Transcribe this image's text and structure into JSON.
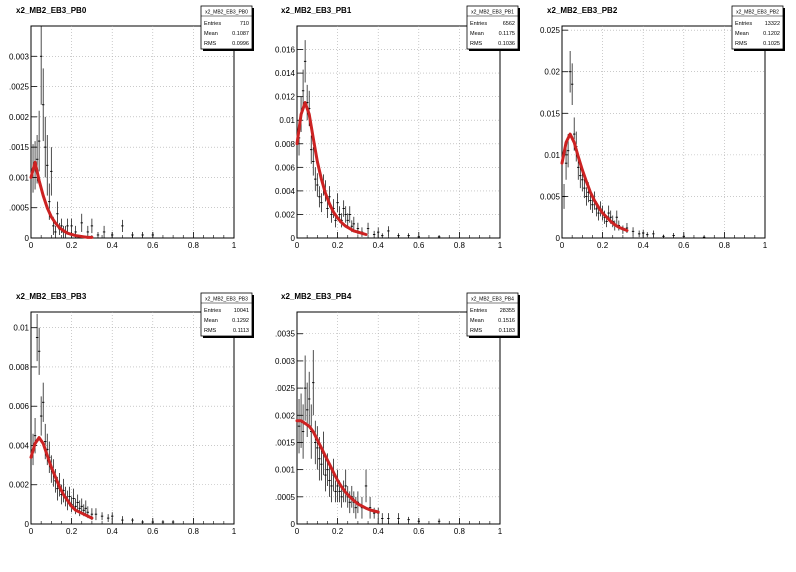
{
  "chart_data": [
    {
      "type": "scatter",
      "title": "x2_MB2_EB3_PB0",
      "stats": {
        "name": "x2_MB2_EB3_PB0",
        "entries_label": "Entries",
        "entries": "710",
        "mean_label": "Mean",
        "mean": "0.1087",
        "rms_label": "RMS",
        "rms": "0.0996"
      },
      "xlim": [
        0,
        1
      ],
      "ylim": [
        0,
        0.0035
      ],
      "xticks": [
        0,
        0.2,
        0.4,
        0.6,
        0.8,
        1
      ],
      "xtick_labels": [
        "0",
        "0.2",
        "0.4",
        "0.6",
        "0.8",
        "1"
      ],
      "yticks": [
        0,
        0.0005,
        0.001,
        0.0015,
        0.002,
        0.0025,
        0.003
      ],
      "ytick_labels": [
        "0",
        ".0005",
        "0.001",
        ".0015",
        "0.002",
        ".0025",
        "0.003"
      ],
      "grid": true,
      "x": [
        0.01,
        0.02,
        0.03,
        0.04,
        0.05,
        0.06,
        0.07,
        0.08,
        0.09,
        0.1,
        0.11,
        0.12,
        0.13,
        0.14,
        0.15,
        0.16,
        0.17,
        0.18,
        0.2,
        0.22,
        0.25,
        0.28,
        0.3,
        0.33,
        0.36,
        0.4,
        0.45,
        0.5,
        0.55,
        0.6
      ],
      "y": [
        0.00115,
        0.0012,
        0.0013,
        0.0016,
        0.003,
        0.0022,
        0.0015,
        0.0012,
        0.0006,
        0.0011,
        0.0002,
        0.0001,
        0.0004,
        0.00015,
        0.0002,
        0.0001,
        0.0001,
        0.0002,
        0.0002,
        0.0001,
        0.00025,
        0.0001,
        0.0002,
        5e-05,
        0.0001,
        5e-05,
        0.0002,
        5e-05,
        5e-05,
        5e-05
      ],
      "yerr": [
        0.0004,
        0.0004,
        0.0004,
        0.0005,
        0.0008,
        0.0006,
        0.0005,
        0.0005,
        0.0003,
        0.0004,
        0.00015,
        0.0001,
        0.0002,
        0.0001,
        0.00012,
        0.0001,
        0.0001,
        0.00012,
        0.00012,
        0.0001,
        0.00015,
        0.0001,
        0.00012,
        5e-05,
        0.0001,
        5e-05,
        0.0001,
        5e-05,
        5e-05,
        5e-05
      ],
      "fit": {
        "x": [
          0.0,
          0.02,
          0.04,
          0.06,
          0.08,
          0.1,
          0.12,
          0.14,
          0.16,
          0.18,
          0.2,
          0.22,
          0.24,
          0.26,
          0.28,
          0.3
        ],
        "y": [
          0.001,
          0.00125,
          0.00095,
          0.0007,
          0.0005,
          0.00035,
          0.00025,
          0.00017,
          0.00012,
          8e-05,
          6e-05,
          4e-05,
          3e-05,
          2e-05,
          1e-05,
          1e-05
        ],
        "color": "#cc2222"
      }
    },
    {
      "type": "scatter",
      "title": "x2_MB2_EB3_PB1",
      "stats": {
        "name": "x2_MB2_EB3_PB1",
        "entries_label": "Entries",
        "entries": "6562",
        "mean_label": "Mean",
        "mean": "0.1175",
        "rms_label": "RMS",
        "rms": "0.1036"
      },
      "xlim": [
        0,
        1
      ],
      "ylim": [
        0,
        0.018
      ],
      "xticks": [
        0,
        0.2,
        0.4,
        0.6,
        0.8,
        1
      ],
      "xtick_labels": [
        "0",
        "0.2",
        "0.4",
        "0.6",
        "0.8",
        "1"
      ],
      "yticks": [
        0,
        0.002,
        0.004,
        0.006,
        0.008,
        0.01,
        0.012,
        0.014,
        0.016
      ],
      "ytick_labels": [
        "0",
        "0.002",
        "0.004",
        "0.006",
        "0.008",
        "0.01",
        "0.012",
        "0.014",
        "0.016"
      ],
      "grid": true,
      "x": [
        0.01,
        0.02,
        0.03,
        0.04,
        0.05,
        0.06,
        0.07,
        0.08,
        0.09,
        0.1,
        0.11,
        0.12,
        0.13,
        0.14,
        0.15,
        0.16,
        0.17,
        0.18,
        0.19,
        0.2,
        0.21,
        0.22,
        0.23,
        0.24,
        0.25,
        0.26,
        0.27,
        0.28,
        0.3,
        0.32,
        0.35,
        0.38,
        0.4,
        0.42,
        0.45,
        0.5,
        0.55,
        0.6,
        0.7
      ],
      "y": [
        0.0085,
        0.0105,
        0.0125,
        0.015,
        0.0115,
        0.011,
        0.0075,
        0.0065,
        0.005,
        0.0045,
        0.0035,
        0.003,
        0.0045,
        0.004,
        0.0025,
        0.0035,
        0.002,
        0.0025,
        0.0015,
        0.003,
        0.002,
        0.0015,
        0.0025,
        0.002,
        0.0015,
        0.002,
        0.001,
        0.0012,
        0.0008,
        0.0005,
        0.0008,
        0.0003,
        0.0005,
        0.0002,
        0.0006,
        0.0002,
        0.0002,
        0.0001,
        0.0001
      ],
      "yerr": [
        0.0015,
        0.0015,
        0.0018,
        0.0018,
        0.0015,
        0.0015,
        0.0012,
        0.0012,
        0.001,
        0.001,
        0.0009,
        0.0008,
        0.0009,
        0.0009,
        0.0008,
        0.0009,
        0.0007,
        0.0008,
        0.0006,
        0.0008,
        0.0007,
        0.0006,
        0.0007,
        0.0007,
        0.0006,
        0.0007,
        0.0005,
        0.0006,
        0.0005,
        0.0004,
        0.0005,
        0.0003,
        0.0004,
        0.0002,
        0.0004,
        0.0002,
        0.0002,
        0.0001,
        0.0001
      ],
      "fit": {
        "x": [
          0.0,
          0.02,
          0.04,
          0.06,
          0.08,
          0.1,
          0.12,
          0.14,
          0.16,
          0.18,
          0.2,
          0.22,
          0.24,
          0.26,
          0.28,
          0.3,
          0.32,
          0.34
        ],
        "y": [
          0.008,
          0.0105,
          0.0115,
          0.0105,
          0.0085,
          0.0065,
          0.005,
          0.0038,
          0.0029,
          0.0022,
          0.0017,
          0.0013,
          0.001,
          0.0008,
          0.0006,
          0.0005,
          0.0004,
          0.0003
        ],
        "color": "#cc2222"
      }
    },
    {
      "type": "scatter",
      "title": "x2_MB2_EB3_PB2",
      "stats": {
        "name": "x2_MB2_EB3_PB2",
        "entries_label": "Entries",
        "entries": "13322",
        "mean_label": "Mean",
        "mean": "0.1202",
        "rms_label": "RMS",
        "rms": "0.1025"
      },
      "xlim": [
        0,
        1
      ],
      "ylim": [
        0,
        0.0255
      ],
      "xticks": [
        0,
        0.2,
        0.4,
        0.6,
        0.8,
        1
      ],
      "xtick_labels": [
        "0",
        "0.2",
        "0.4",
        "0.6",
        "0.8",
        "1"
      ],
      "yticks": [
        0,
        0.005,
        0.01,
        0.015,
        0.02,
        0.025
      ],
      "ytick_labels": [
        "0",
        "0.005",
        "0.01",
        "0.015",
        "0.02",
        "0.025"
      ],
      "grid": true,
      "x": [
        0.01,
        0.02,
        0.03,
        0.04,
        0.05,
        0.06,
        0.07,
        0.08,
        0.09,
        0.1,
        0.11,
        0.12,
        0.13,
        0.14,
        0.15,
        0.16,
        0.17,
        0.18,
        0.19,
        0.2,
        0.21,
        0.22,
        0.23,
        0.24,
        0.25,
        0.26,
        0.27,
        0.28,
        0.3,
        0.32,
        0.35,
        0.38,
        0.4,
        0.42,
        0.45,
        0.5,
        0.55,
        0.6,
        0.7
      ],
      "y": [
        0.005,
        0.009,
        0.0105,
        0.02,
        0.0185,
        0.0125,
        0.011,
        0.0085,
        0.0075,
        0.007,
        0.006,
        0.005,
        0.0055,
        0.0045,
        0.004,
        0.0045,
        0.0035,
        0.003,
        0.0035,
        0.003,
        0.0025,
        0.002,
        0.003,
        0.0025,
        0.002,
        0.0015,
        0.0025,
        0.0015,
        0.001,
        0.0012,
        0.0008,
        0.0005,
        0.0006,
        0.0004,
        0.0005,
        0.0002,
        0.0003,
        0.0002,
        0.0001
      ],
      "yerr": [
        0.0015,
        0.002,
        0.002,
        0.0025,
        0.0025,
        0.002,
        0.0018,
        0.0015,
        0.0015,
        0.0014,
        0.0012,
        0.0011,
        0.0012,
        0.0011,
        0.001,
        0.0011,
        0.0009,
        0.0009,
        0.0009,
        0.0009,
        0.0008,
        0.0007,
        0.0009,
        0.0008,
        0.0007,
        0.0006,
        0.0008,
        0.0006,
        0.0005,
        0.0006,
        0.0005,
        0.0004,
        0.0004,
        0.0003,
        0.0004,
        0.0002,
        0.0003,
        0.0002,
        0.0001
      ],
      "fit": {
        "x": [
          0.0,
          0.02,
          0.04,
          0.06,
          0.08,
          0.1,
          0.12,
          0.14,
          0.16,
          0.18,
          0.2,
          0.22,
          0.24,
          0.26,
          0.28,
          0.3,
          0.32
        ],
        "y": [
          0.009,
          0.0115,
          0.0125,
          0.0115,
          0.0098,
          0.0082,
          0.0068,
          0.0055,
          0.0045,
          0.0037,
          0.003,
          0.0025,
          0.002,
          0.0016,
          0.0013,
          0.0011,
          0.0009
        ],
        "color": "#cc2222"
      }
    },
    {
      "type": "scatter",
      "title": "x2_MB2_EB3_PB3",
      "stats": {
        "name": "x2_MB2_EB3_PB3",
        "entries_label": "Entries",
        "entries": "10041",
        "mean_label": "Mean",
        "mean": "0.1292",
        "rms_label": "RMS",
        "rms": "0.1113"
      },
      "xlim": [
        0,
        1
      ],
      "ylim": [
        0,
        0.0108
      ],
      "xticks": [
        0,
        0.2,
        0.4,
        0.6,
        0.8,
        1
      ],
      "xtick_labels": [
        "0",
        "0.2",
        "0.4",
        "0.6",
        "0.8",
        "1"
      ],
      "yticks": [
        0,
        0.002,
        0.004,
        0.006,
        0.008,
        0.01
      ],
      "ytick_labels": [
        "0",
        "0.002",
        "0.004",
        "0.006",
        "0.008",
        "0.01"
      ],
      "grid": true,
      "x": [
        0.01,
        0.02,
        0.03,
        0.04,
        0.05,
        0.06,
        0.07,
        0.08,
        0.09,
        0.1,
        0.11,
        0.12,
        0.13,
        0.14,
        0.15,
        0.16,
        0.17,
        0.18,
        0.19,
        0.2,
        0.21,
        0.22,
        0.23,
        0.24,
        0.25,
        0.26,
        0.27,
        0.28,
        0.3,
        0.32,
        0.35,
        0.38,
        0.4,
        0.45,
        0.5,
        0.55,
        0.6,
        0.65,
        0.7
      ],
      "y": [
        0.0038,
        0.0045,
        0.0095,
        0.0088,
        0.0055,
        0.0062,
        0.0042,
        0.0038,
        0.0034,
        0.0028,
        0.0026,
        0.0022,
        0.0018,
        0.002,
        0.0015,
        0.0017,
        0.0014,
        0.0012,
        0.0014,
        0.001,
        0.0013,
        0.0009,
        0.0011,
        0.0008,
        0.0009,
        0.0007,
        0.0008,
        0.0006,
        0.0005,
        0.0005,
        0.0004,
        0.0003,
        0.0004,
        0.0002,
        0.0002,
        0.0001,
        0.0001,
        0.0001,
        0.0001
      ],
      "yerr": [
        0.0008,
        0.0009,
        0.0012,
        0.0012,
        0.001,
        0.001,
        0.0009,
        0.0008,
        0.0008,
        0.0007,
        0.0007,
        0.0006,
        0.0006,
        0.0006,
        0.0005,
        0.0006,
        0.0005,
        0.0005,
        0.0005,
        0.0004,
        0.0005,
        0.0004,
        0.0004,
        0.0004,
        0.0004,
        0.0003,
        0.0004,
        0.0003,
        0.0003,
        0.0003,
        0.0002,
        0.0002,
        0.0002,
        0.0002,
        0.0001,
        0.0001,
        0.0001,
        0.0001,
        0.0001
      ],
      "fit": {
        "x": [
          0.0,
          0.02,
          0.04,
          0.06,
          0.08,
          0.1,
          0.12,
          0.14,
          0.16,
          0.18,
          0.2,
          0.22,
          0.24,
          0.26,
          0.28,
          0.3
        ],
        "y": [
          0.0034,
          0.0041,
          0.0044,
          0.0041,
          0.0035,
          0.0029,
          0.0024,
          0.0019,
          0.0015,
          0.0012,
          0.0009,
          0.0007,
          0.0006,
          0.0005,
          0.0004,
          0.0003
        ],
        "color": "#cc2222"
      }
    },
    {
      "type": "scatter",
      "title": "x2_MB2_EB3_PB4",
      "stats": {
        "name": "x2_MB2_EB3_PB4",
        "entries_label": "Entries",
        "entries": "28355",
        "mean_label": "Mean",
        "mean": "0.1516",
        "rms_label": "RMS",
        "rms": "0.1183"
      },
      "xlim": [
        0,
        1
      ],
      "ylim": [
        0,
        0.0039
      ],
      "xticks": [
        0,
        0.2,
        0.4,
        0.6,
        0.8,
        1
      ],
      "xtick_labels": [
        "0",
        "0.2",
        "0.4",
        "0.6",
        "0.8",
        "1"
      ],
      "yticks": [
        0,
        0.0005,
        0.001,
        0.0015,
        0.002,
        0.0025,
        0.003,
        0.0035
      ],
      "ytick_labels": [
        "0",
        ".0005",
        "0.001",
        ".0015",
        "0.002",
        ".0025",
        "0.003",
        ".0035"
      ],
      "grid": true,
      "x": [
        0.01,
        0.02,
        0.03,
        0.04,
        0.05,
        0.06,
        0.07,
        0.08,
        0.09,
        0.1,
        0.11,
        0.12,
        0.13,
        0.14,
        0.15,
        0.16,
        0.17,
        0.18,
        0.19,
        0.2,
        0.21,
        0.22,
        0.23,
        0.24,
        0.25,
        0.26,
        0.27,
        0.28,
        0.29,
        0.3,
        0.32,
        0.34,
        0.36,
        0.38,
        0.4,
        0.42,
        0.45,
        0.5,
        0.55,
        0.6,
        0.7
      ],
      "y": [
        0.0018,
        0.0019,
        0.0017,
        0.0025,
        0.0021,
        0.0023,
        0.0017,
        0.0026,
        0.0015,
        0.0014,
        0.0012,
        0.0011,
        0.0013,
        0.0009,
        0.001,
        0.0008,
        0.0007,
        0.0009,
        0.0006,
        0.0007,
        0.0006,
        0.0005,
        0.0006,
        0.0007,
        0.0005,
        0.0004,
        0.0005,
        0.0004,
        0.0003,
        0.0004,
        0.0003,
        0.0007,
        0.0003,
        0.0002,
        0.0002,
        0.0001,
        0.0001,
        0.0001,
        8e-05,
        5e-05,
        5e-05
      ],
      "yerr": [
        0.0005,
        0.0005,
        0.0005,
        0.0006,
        0.0005,
        0.0005,
        0.0005,
        0.0006,
        0.0004,
        0.0004,
        0.0004,
        0.0003,
        0.0004,
        0.0003,
        0.0003,
        0.0003,
        0.0003,
        0.0003,
        0.0002,
        0.0003,
        0.0002,
        0.0002,
        0.0002,
        0.0003,
        0.0002,
        0.0002,
        0.0002,
        0.0002,
        0.0002,
        0.0002,
        0.0002,
        0.0003,
        0.0002,
        0.0001,
        0.0001,
        0.0001,
        0.0001,
        0.0001,
        5e-05,
        5e-05,
        5e-05
      ],
      "fit": {
        "x": [
          0.0,
          0.02,
          0.04,
          0.06,
          0.08,
          0.1,
          0.12,
          0.14,
          0.16,
          0.18,
          0.2,
          0.22,
          0.24,
          0.26,
          0.28,
          0.3,
          0.32,
          0.34,
          0.36,
          0.38,
          0.4
        ],
        "y": [
          0.0019,
          0.0019,
          0.00185,
          0.0018,
          0.0017,
          0.00155,
          0.0014,
          0.00125,
          0.0011,
          0.00095,
          0.0008,
          0.00068,
          0.00058,
          0.0005,
          0.00043,
          0.00037,
          0.00033,
          0.00029,
          0.00026,
          0.00024,
          0.00022
        ],
        "color": "#cc2222"
      }
    }
  ]
}
